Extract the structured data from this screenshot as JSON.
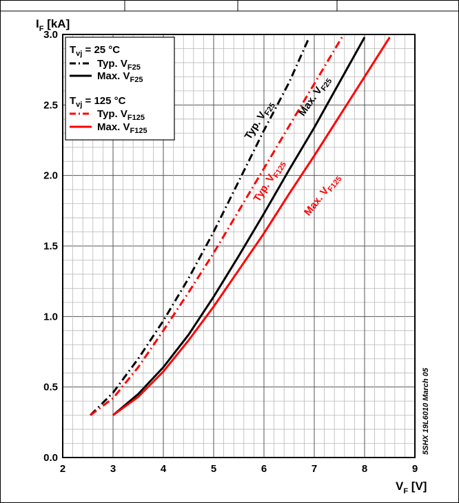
{
  "chart_data": {
    "type": "line",
    "y_axis_title": {
      "main": "I",
      "sub": "F",
      "unit": " [kA]"
    },
    "x_axis_title": {
      "main": "V",
      "sub": "F",
      "unit": " [V]"
    },
    "xlim": [
      2,
      9
    ],
    "ylim": [
      0.0,
      3.0
    ],
    "x_ticks": [
      "2",
      "3",
      "4",
      "5",
      "6",
      "7",
      "8",
      "9"
    ],
    "y_ticks": [
      "0.0",
      "0.5",
      "1.0",
      "1.5",
      "2.0",
      "2.5",
      "3.0"
    ],
    "grid": true,
    "legend_position": "top-left",
    "legend_groups": [
      {
        "heading": {
          "main": "T",
          "sub": "vj",
          "rest": " = 25 °C"
        },
        "entries": [
          {
            "series": 0,
            "main": "Typ. V",
            "sub": "F25"
          },
          {
            "series": 1,
            "main": "Max. V",
            "sub": "F25"
          }
        ]
      },
      {
        "heading": {
          "main": "T",
          "sub": "vj",
          "rest": " = 125 °C"
        },
        "entries": [
          {
            "series": 2,
            "main": "Typ. V",
            "sub": "F125"
          },
          {
            "series": 3,
            "main": "Max. V",
            "sub": "F125"
          }
        ]
      }
    ],
    "series": [
      {
        "name": "Typ. VF25",
        "color": "#000000",
        "dash": "dashdot",
        "x": [
          2.55,
          3.0,
          3.5,
          4.0,
          4.5,
          5.0,
          5.5,
          6.0,
          6.5,
          6.9
        ],
        "y": [
          0.3,
          0.46,
          0.7,
          0.97,
          1.27,
          1.6,
          1.96,
          2.32,
          2.66,
          2.98
        ]
      },
      {
        "name": "Max. VF25",
        "color": "#000000",
        "dash": "solid",
        "x": [
          3.0,
          3.5,
          4.0,
          4.5,
          5.0,
          5.5,
          6.0,
          6.5,
          7.0,
          7.5,
          8.0
        ],
        "y": [
          0.3,
          0.45,
          0.64,
          0.87,
          1.14,
          1.43,
          1.73,
          2.04,
          2.34,
          2.66,
          2.98
        ]
      },
      {
        "name": "Typ. VF125",
        "color": "#ff0000",
        "dash": "dashdot",
        "x": [
          2.55,
          3.0,
          3.5,
          4.0,
          4.5,
          5.0,
          5.5,
          6.0,
          6.5,
          7.0,
          7.55
        ],
        "y": [
          0.3,
          0.42,
          0.64,
          0.9,
          1.17,
          1.45,
          1.75,
          2.05,
          2.35,
          2.65,
          2.98
        ]
      },
      {
        "name": "Max. VF125",
        "color": "#ff0000",
        "dash": "solid",
        "x": [
          3.0,
          3.5,
          4.0,
          4.5,
          5.0,
          5.5,
          6.0,
          6.5,
          7.0,
          7.5,
          8.0,
          8.5
        ],
        "y": [
          0.3,
          0.43,
          0.61,
          0.83,
          1.07,
          1.33,
          1.59,
          1.87,
          2.14,
          2.42,
          2.7,
          2.98
        ]
      }
    ],
    "curve_labels": [
      {
        "series": 0,
        "main": "Typ. V",
        "sub": "F25",
        "at_x": 5.95,
        "at_y": 2.38,
        "angle": -58
      },
      {
        "series": 1,
        "main": "Max. V",
        "sub": "F25",
        "at_x": 7.05,
        "at_y": 2.55,
        "angle": -55
      },
      {
        "series": 2,
        "main": "Typ. V",
        "sub": "F125",
        "at_x": 6.15,
        "at_y": 1.95,
        "angle": -58
      },
      {
        "series": 3,
        "main": "Max. V",
        "sub": "F125",
        "at_x": 7.2,
        "at_y": 1.85,
        "angle": -52
      }
    ],
    "side_note": "5SHX 19L6010 March 05"
  }
}
